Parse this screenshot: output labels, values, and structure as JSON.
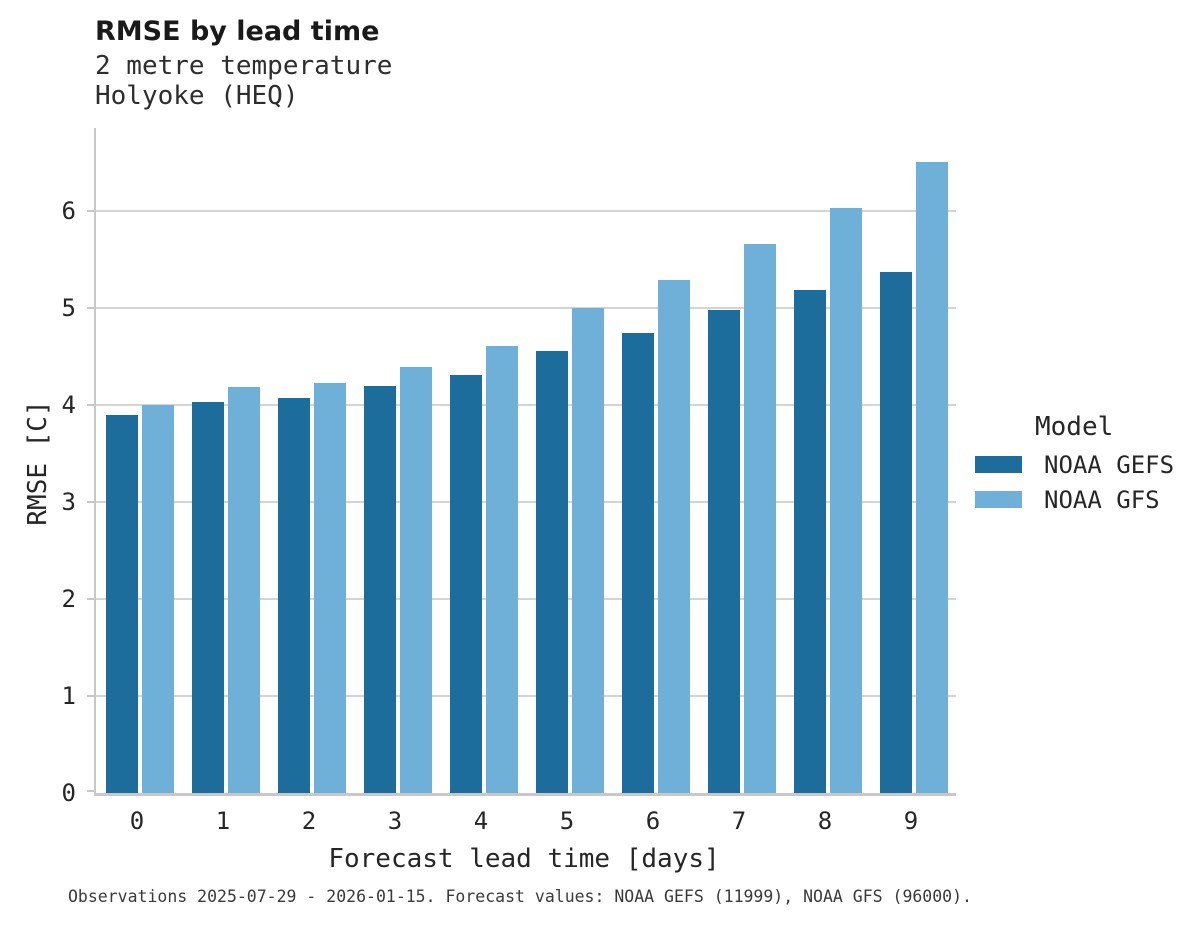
{
  "header": {
    "title": "RMSE by lead time",
    "subtitle_line1": "2 metre temperature",
    "subtitle_line2": "Holyoke (HEQ)"
  },
  "chart_data": {
    "type": "bar",
    "title": "RMSE by lead time",
    "subtitle": [
      "2 metre temperature",
      "Holyoke (HEQ)"
    ],
    "categories": [
      "0",
      "1",
      "2",
      "3",
      "4",
      "5",
      "6",
      "7",
      "8",
      "9"
    ],
    "series": [
      {
        "name": "NOAA GEFS",
        "color": "#1c6c9c",
        "values": [
          3.89,
          4.03,
          4.07,
          4.19,
          4.31,
          4.55,
          4.74,
          4.98,
          5.18,
          5.37
        ]
      },
      {
        "name": "NOAA GFS",
        "color": "#6fb0d8",
        "values": [
          4.0,
          4.18,
          4.22,
          4.39,
          4.61,
          5.0,
          5.28,
          5.66,
          6.03,
          6.5
        ]
      }
    ],
    "xlabel": "Forecast lead time [days]",
    "ylabel": "RMSE [C]",
    "ylim": [
      0,
      6.85
    ],
    "yticks": [
      0,
      1,
      2,
      3,
      4,
      5,
      6
    ],
    "grid": "horizontal",
    "legend_title": "Model",
    "legend_position": "right"
  },
  "legend": {
    "title": "Model",
    "items": [
      {
        "label": "NOAA GEFS",
        "color": "#1c6c9c"
      },
      {
        "label": "NOAA GFS",
        "color": "#6fb0d8"
      }
    ]
  },
  "footer": {
    "text": "Observations 2025-07-29 - 2026-01-15. Forecast values: NOAA GEFS (11999), NOAA GFS (96000)."
  },
  "colors": {
    "grid": "#d4d4d4",
    "axis": "#c8c8c8",
    "text": "#262626",
    "series_dark": "#1c6c9c",
    "series_light": "#6fb0d8"
  }
}
